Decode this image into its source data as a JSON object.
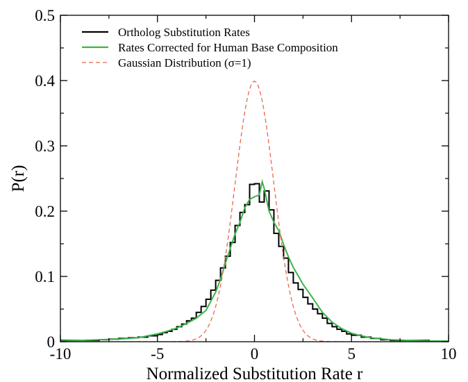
{
  "chart_data": {
    "type": "line",
    "title": "",
    "xlabel": "Normalized Substitution Rate r",
    "ylabel": "P(r)",
    "xlim": [
      -10,
      10
    ],
    "ylim": [
      0,
      0.5
    ],
    "x_ticks": [
      -10,
      -5,
      0,
      5,
      10
    ],
    "y_ticks": [
      0,
      0.1,
      0.2,
      0.3,
      0.4,
      0.5
    ],
    "x_tick_labels": [
      "-10",
      "-5",
      "0",
      "5",
      "10"
    ],
    "y_tick_labels": [
      "0",
      "0.1",
      "0.2",
      "0.3",
      "0.4",
      "0.5"
    ],
    "grid": false,
    "legend_position": "top-left",
    "series": [
      {
        "name": "Ortholog Substitution Rates",
        "color": "#000000",
        "style": "step",
        "x": [
          -10,
          -9,
          -8,
          -7.5,
          -7,
          -6.5,
          -6,
          -5.5,
          -5,
          -4.75,
          -4.5,
          -4.25,
          -4,
          -3.75,
          -3.5,
          -3.25,
          -3,
          -2.75,
          -2.5,
          -2.25,
          -2,
          -1.75,
          -1.5,
          -1.25,
          -1,
          -0.75,
          -0.5,
          -0.25,
          0,
          0.25,
          0.5,
          0.75,
          1,
          1.25,
          1.5,
          1.75,
          2,
          2.25,
          2.5,
          2.75,
          3,
          3.25,
          3.5,
          3.75,
          4,
          4.25,
          4.5,
          4.75,
          5,
          5.5,
          6,
          6.5,
          7,
          8,
          9,
          10
        ],
        "y": [
          0.002,
          0.002,
          0.003,
          0.004,
          0.005,
          0.006,
          0.007,
          0.009,
          0.011,
          0.014,
          0.016,
          0.019,
          0.023,
          0.027,
          0.032,
          0.036,
          0.045,
          0.054,
          0.065,
          0.079,
          0.094,
          0.113,
          0.131,
          0.152,
          0.178,
          0.198,
          0.21,
          0.241,
          0.242,
          0.214,
          0.231,
          0.202,
          0.166,
          0.146,
          0.128,
          0.106,
          0.09,
          0.08,
          0.068,
          0.058,
          0.05,
          0.043,
          0.036,
          0.028,
          0.023,
          0.019,
          0.016,
          0.012,
          0.01,
          0.007,
          0.005,
          0.003,
          0.002,
          0.002,
          0.001,
          0.001
        ]
      },
      {
        "name": "Rates Corrected for Human Base Composition",
        "color": "#3cb34a",
        "style": "line",
        "x": [
          -10,
          -9,
          -8,
          -7,
          -6,
          -5.5,
          -5,
          -4.5,
          -4,
          -3.5,
          -3,
          -2.5,
          -2,
          -1.75,
          -1.5,
          -1.25,
          -1,
          -0.75,
          -0.5,
          -0.25,
          0,
          0.25,
          0.4,
          0.5,
          0.75,
          1,
          1.25,
          1.5,
          1.75,
          2,
          2.5,
          3,
          3.5,
          4,
          4.5,
          5,
          5.5,
          6,
          7,
          8,
          9,
          10
        ],
        "y": [
          0.001,
          0.002,
          0.003,
          0.004,
          0.006,
          0.009,
          0.012,
          0.016,
          0.021,
          0.028,
          0.036,
          0.048,
          0.076,
          0.096,
          0.12,
          0.143,
          0.165,
          0.183,
          0.205,
          0.218,
          0.222,
          0.225,
          0.245,
          0.235,
          0.2,
          0.183,
          0.17,
          0.149,
          0.13,
          0.114,
          0.088,
          0.067,
          0.045,
          0.03,
          0.02,
          0.013,
          0.009,
          0.006,
          0.003,
          0.002,
          0.001,
          0.001
        ]
      },
      {
        "name": "Gaussian Distribution (σ=1)",
        "color": "#e8674d",
        "style": "dashed",
        "function": "gaussian",
        "mean": 0,
        "sigma": 1
      }
    ]
  }
}
